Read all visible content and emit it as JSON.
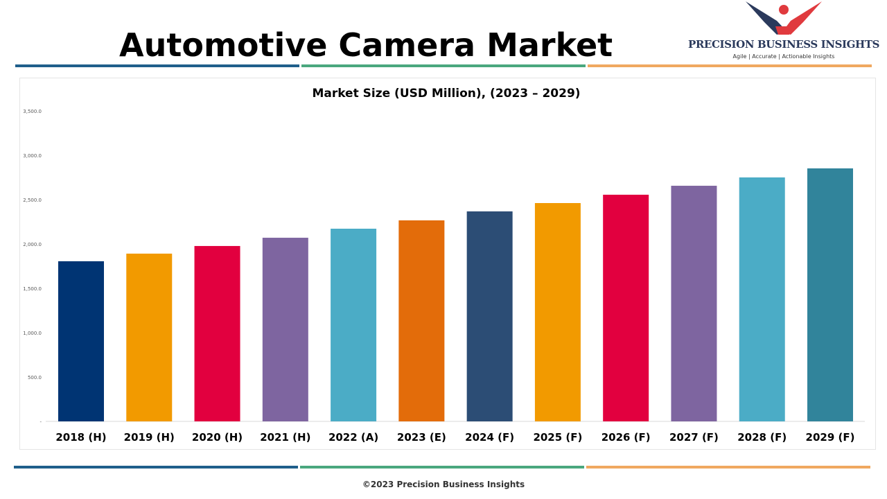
{
  "header": {
    "title": "Automotive Camera Market",
    "logo_name": "PRECISION BUSINESS INSIGHTS",
    "logo_tagline": "Agile | Accurate | Actionable Insights"
  },
  "accent_colors": {
    "blue": "#1f5f8b",
    "green": "#4aa77e",
    "orange": "#f0a860"
  },
  "footer": {
    "copyright": "©2023 Precision Business Insights"
  },
  "chart_data": {
    "type": "bar",
    "title": "Market Size (USD Million), (2023 – 2029)",
    "xlabel": "",
    "ylabel": "",
    "ylim": [
      0,
      3500
    ],
    "y_ticks": [
      0,
      500,
      1000,
      1500,
      2000,
      2500,
      3000,
      3500
    ],
    "y_tick_labels": [
      "-",
      "500.0",
      "1,000.0",
      "1,500.0",
      "2,000.0",
      "2,500.0",
      "3,000.0",
      "3,500.0"
    ],
    "grid": false,
    "categories": [
      "2018 (H)",
      "2019 (H)",
      "2020 (H)",
      "2021 (H)",
      "2022 (A)",
      "2023 (E)",
      "2024 (F)",
      "2025 (F)",
      "2026 (F)",
      "2027 (F)",
      "2028 (F)",
      "2029 (F)"
    ],
    "values": [
      1805,
      1891,
      1977,
      2070,
      2172,
      2266,
      2367,
      2461,
      2555,
      2656,
      2750,
      2852
    ],
    "colors": [
      "#003473",
      "#F29A00",
      "#E2003F",
      "#7E65A0",
      "#4BACC6",
      "#E36C0A",
      "#2C4D75",
      "#F29A00",
      "#E2003F",
      "#7E65A0",
      "#4BACC6",
      "#31849B"
    ]
  }
}
